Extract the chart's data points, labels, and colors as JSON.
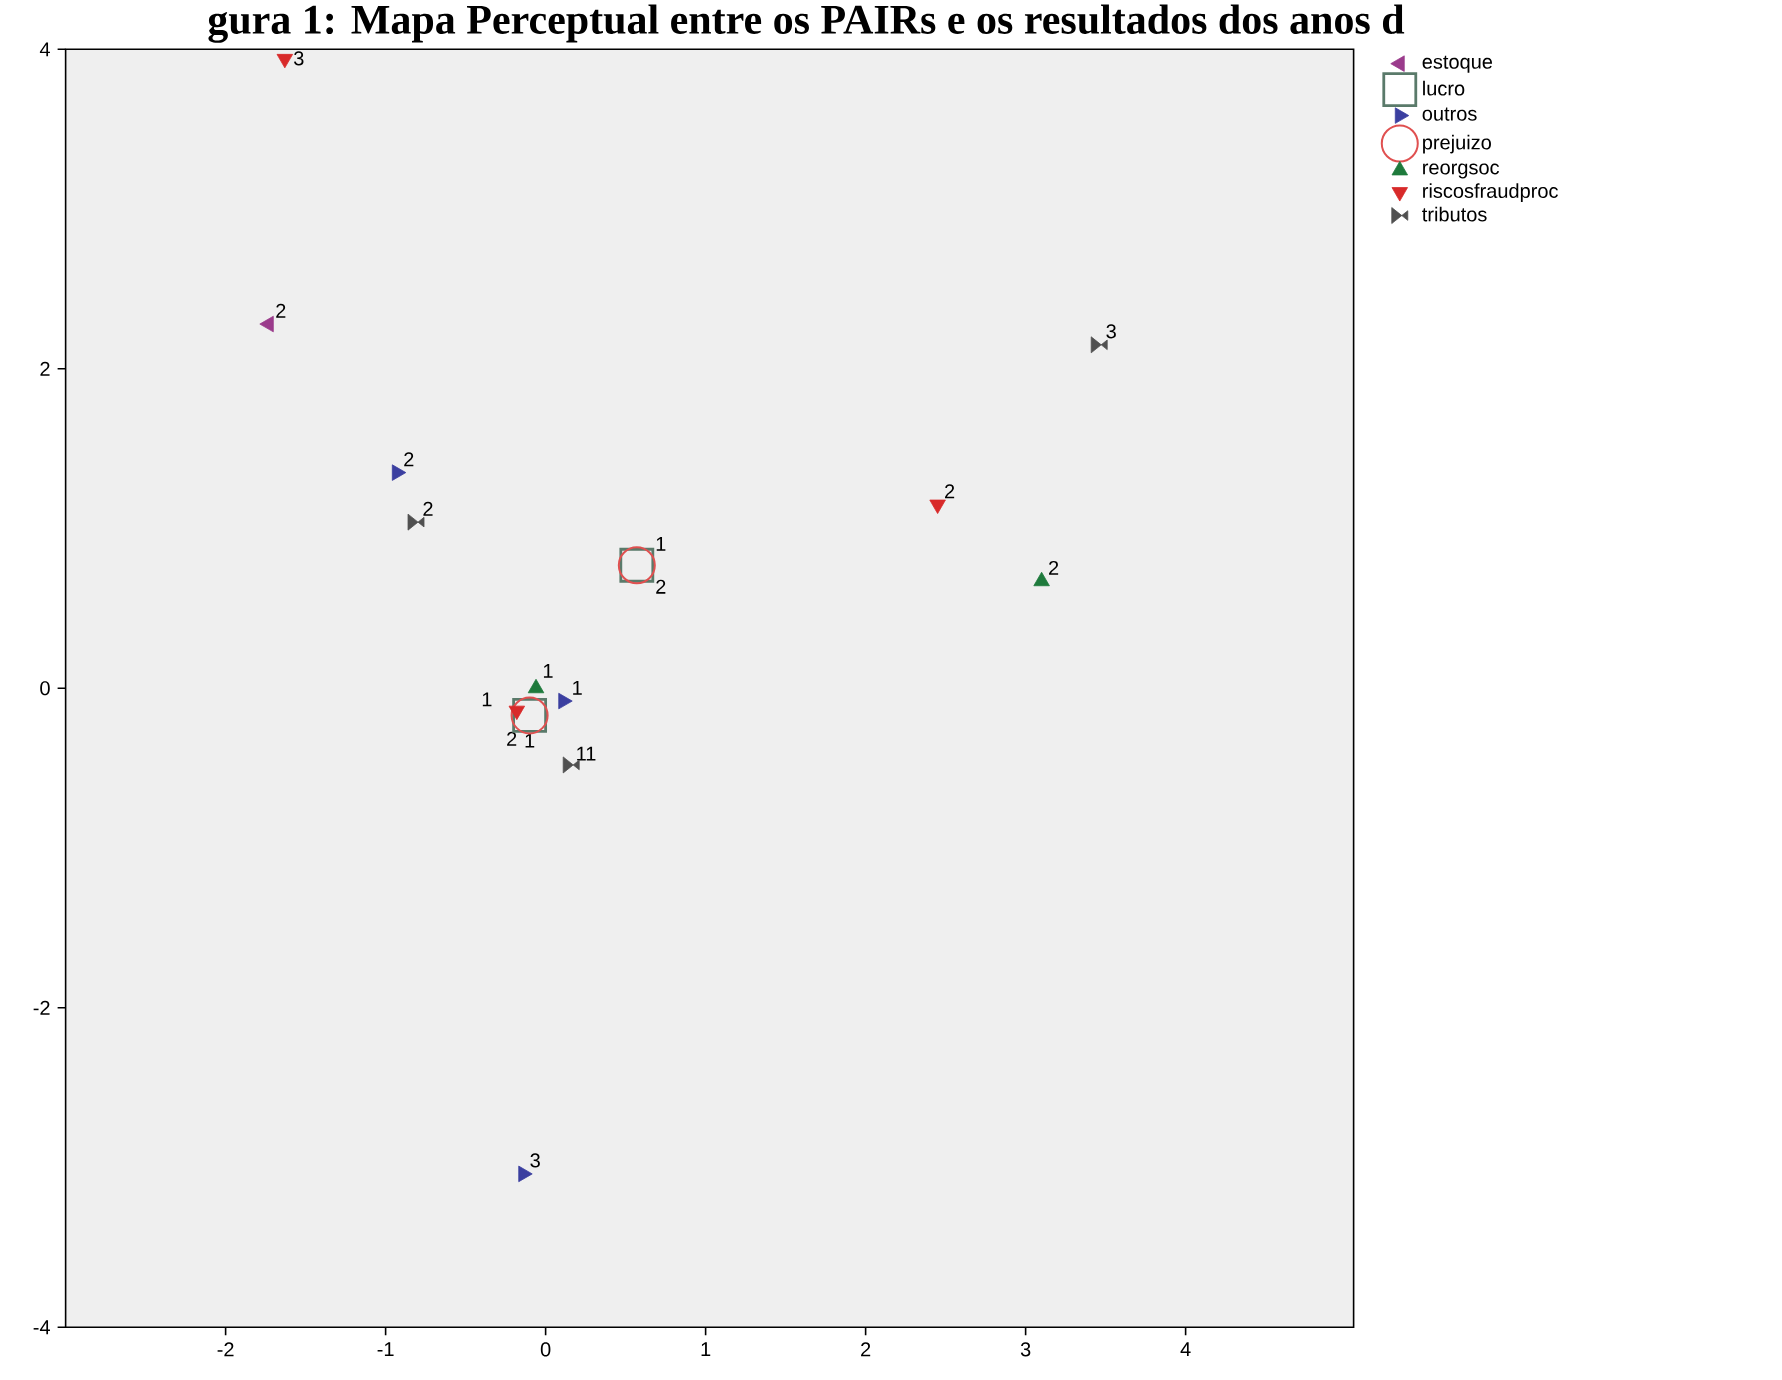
{
  "chart_data": {
    "type": "scatter",
    "title": "gura 1: Mapa Perceptual entre os PAIRs e os resultados dos anos d",
    "xlim": [
      -3,
      5.05
    ],
    "ylim": [
      -4,
      4
    ],
    "xticks": [
      -2,
      -1,
      0,
      1,
      2,
      3,
      4
    ],
    "yticks": [
      -4,
      -2,
      0,
      2,
      4
    ],
    "grid": false,
    "legend": "top right",
    "series": [
      {
        "name": "estoque",
        "color": "#9b3b8c",
        "marker": "triangle-left",
        "x": [
          -1.73
        ],
        "values": [
          2.28
        ]
      },
      {
        "name": "lucro",
        "color": "#5a7a6a",
        "marker": "square",
        "x": [
          0.57,
          -0.1
        ],
        "values": [
          0.77,
          -0.17
        ]
      },
      {
        "name": "outros",
        "color": "#3b3fa0",
        "marker": "triangle-right",
        "x": [
          -0.93,
          0.11,
          -0.14
        ],
        "values": [
          1.35,
          -0.08,
          -3.04
        ]
      },
      {
        "name": "prejuizo",
        "color": "#e05050",
        "marker": "circle",
        "x": [
          -0.1,
          0.57
        ],
        "values": [
          -0.17,
          0.77
        ]
      },
      {
        "name": "reorgsoc",
        "color": "#1e7a3c",
        "marker": "triangle",
        "x": [
          -0.06,
          3.1
        ],
        "values": [
          0.0,
          0.67
        ]
      },
      {
        "name": "riscosfraudproc",
        "color": "#d82a2a",
        "marker": "triangle-down",
        "x": [
          -1.63,
          2.45,
          -0.18
        ],
        "values": [
          3.94,
          1.15,
          -0.14
        ]
      },
      {
        "name": "tributos",
        "color": "#505050",
        "x": [
          -0.81,
          3.46,
          0.16
        ],
        "values": [
          1.04,
          2.15,
          -0.48
        ]
      }
    ],
    "annotations": [
      {
        "text": "2",
        "x": -1.73,
        "y": 2.28
      },
      {
        "text": "1",
        "x": 0.57,
        "y": 0.77
      },
      {
        "text": "2",
        "x": -0.1,
        "y": -0.17
      },
      {
        "text": "2",
        "x": -0.93,
        "y": 1.35
      },
      {
        "text": "1",
        "x": 0.11,
        "y": -0.08
      },
      {
        "text": "3",
        "x": -0.14,
        "y": -3.04
      },
      {
        "text": "1",
        "x": -0.1,
        "y": -0.17
      },
      {
        "text": "2",
        "x": 0.57,
        "y": 0.77
      },
      {
        "text": "1",
        "x": -0.06,
        "y": 0.0
      },
      {
        "text": "2",
        "x": 3.1,
        "y": 0.67
      },
      {
        "text": "3",
        "x": -1.63,
        "y": 3.94
      },
      {
        "text": "2",
        "x": 2.45,
        "y": 1.15
      },
      {
        "text": "1",
        "x": -0.18,
        "y": -0.14
      },
      {
        "text": "2",
        "x": -0.81,
        "y": 1.04
      },
      {
        "text": "3",
        "x": 3.46,
        "y": 2.15
      },
      {
        "text": "11",
        "x": 0.16,
        "y": -0.48
      }
    ]
  }
}
